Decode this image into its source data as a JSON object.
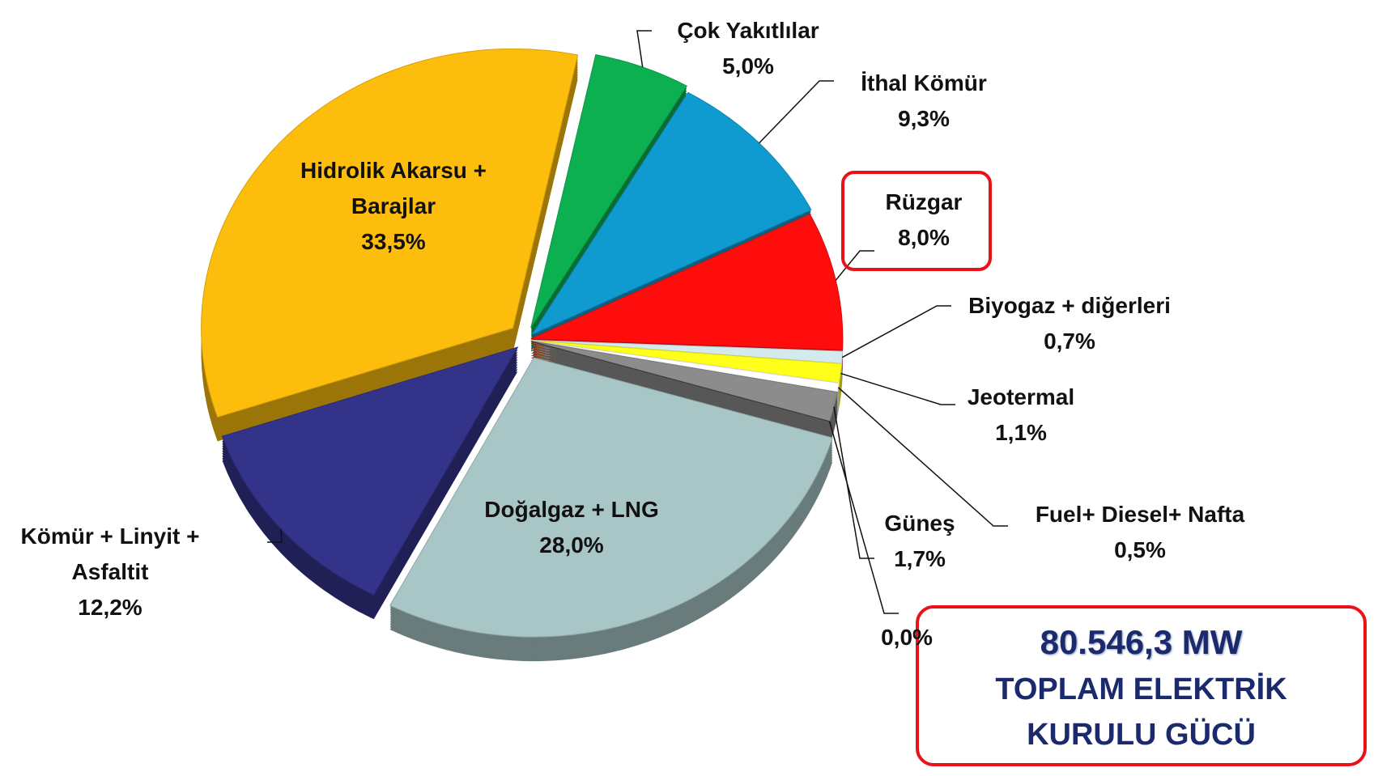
{
  "chart_data": {
    "type": "pie",
    "categories": [
      "Çok Yakıtlılar",
      "İthal Kömür",
      "Rüzgar",
      "Biyogaz + diğerleri",
      "Jeotermal",
      "Fuel+ Diesel+ Nafta",
      "Güneş",
      null,
      "Doğalgaz + LNG",
      "Kömür + Linyit + Asfaltit",
      "Hidrolik Akarsu + Barajlar"
    ],
    "values": [
      5.0,
      9.3,
      8.0,
      0.7,
      1.1,
      0.5,
      1.7,
      0.0,
      28.0,
      12.2,
      33.5
    ],
    "value_labels": [
      "5,0%",
      "9,3%",
      "8,0%",
      "0,7%",
      "1,1%",
      "0,5%",
      "1,7%",
      "0,0%",
      "28,0%",
      "12,2%",
      "33,5%"
    ],
    "colors": [
      "#0db050",
      "#0f9bd0",
      "#ff0d0d",
      "#d3eaee",
      "#ffff1a",
      "#ffffff",
      "#8c8c8c",
      "#404040",
      "#a9c6c7",
      "#33338a",
      "#fcbd0d"
    ],
    "total": "80.546,3 MW",
    "total_caption": "TOPLAM ELEKTRİK KURULU GÜCÜ"
  }
}
